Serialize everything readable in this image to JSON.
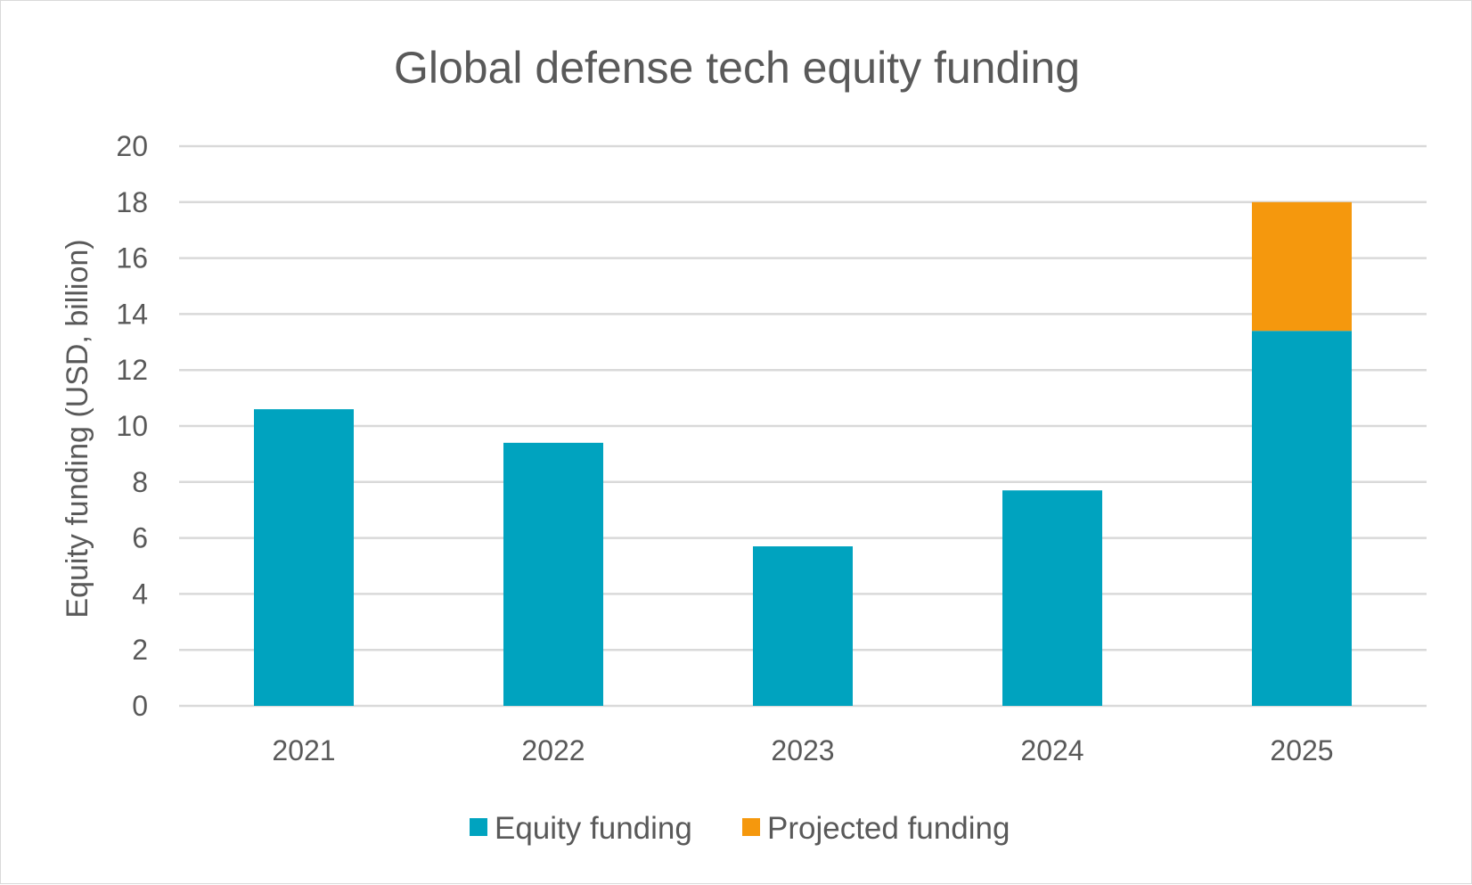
{
  "chart_data": {
    "type": "bar",
    "stacked": true,
    "title": "Global defense tech equity funding",
    "xlabel": "",
    "ylabel": "Equity funding (USD, billion)",
    "ylim": [
      0,
      20
    ],
    "yticks": [
      0,
      2,
      4,
      6,
      8,
      10,
      12,
      14,
      16,
      18,
      20
    ],
    "categories": [
      "2021",
      "2022",
      "2023",
      "2024",
      "2025"
    ],
    "series": [
      {
        "name": "Equity funding",
        "color": "#00A3BF",
        "values": [
          10.6,
          9.4,
          5.7,
          7.7,
          13.4
        ]
      },
      {
        "name": "Projected funding",
        "color": "#F5980D",
        "values": [
          0,
          0,
          0,
          0,
          4.6
        ]
      }
    ],
    "grid": true,
    "legend_position": "bottom"
  }
}
